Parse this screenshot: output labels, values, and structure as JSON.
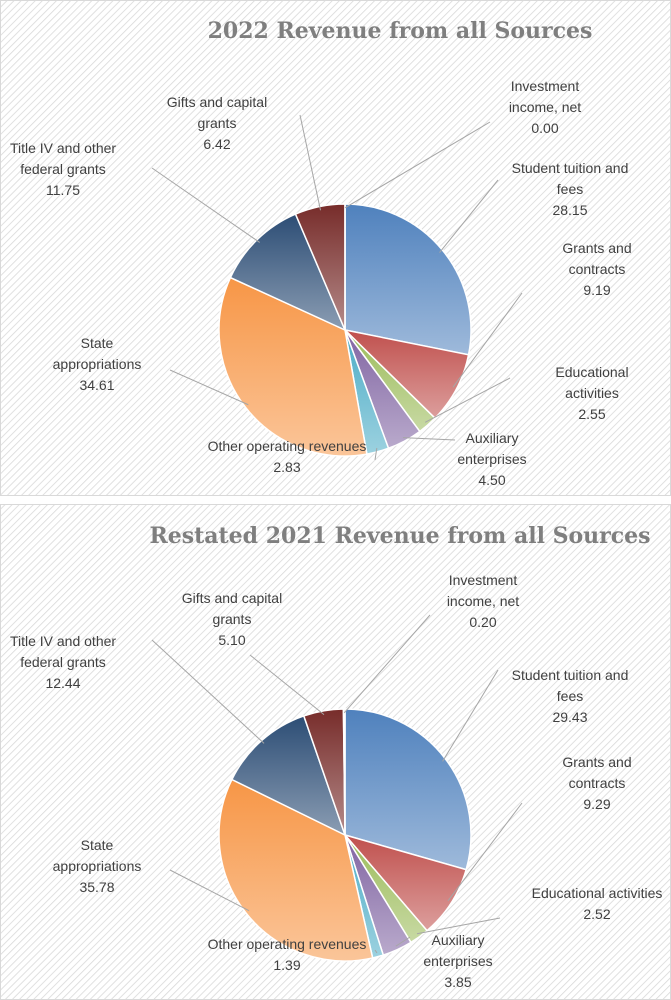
{
  "chart_data": [
    {
      "type": "pie",
      "title": "2022 Revenue from all Sources",
      "categories": [
        "Student tuition and fees",
        "Grants and contracts",
        "Educational activities",
        "Auxiliary enterprises",
        "Other operating revenues",
        "State appropriations",
        "Title IV  and other federal grants",
        "Gifts and capital grants",
        "Investment income, net"
      ],
      "values": [
        28.15,
        9.19,
        2.55,
        4.5,
        2.83,
        34.61,
        11.75,
        6.42,
        0
      ],
      "value_labels": [
        "28.15",
        "9.19",
        "2.55",
        "4.50",
        "2.83",
        "34.61",
        "11.75",
        "6.42",
        "0.00"
      ],
      "colors": [
        "#4f81bd",
        "#c0504d",
        "#9bbb59",
        "#8064a2",
        "#4bacc6",
        "#f79646",
        "#2c4d75",
        "#772c2a",
        "#5f7530"
      ]
    },
    {
      "type": "pie",
      "title": "Restated 2021 Revenue from all Sources",
      "categories": [
        "Student tuition and fees",
        "Grants and contracts",
        "Educational activities",
        "Auxiliary enterprises",
        "Other operating revenues",
        "State appropriations",
        "Title IV  and other federal grants",
        "Gifts and capital grants",
        "Investment income, net"
      ],
      "values": [
        29.43,
        9.29,
        2.52,
        3.85,
        1.39,
        35.78,
        12.44,
        5.1,
        0.2
      ],
      "value_labels": [
        "29.43",
        "9.29",
        "2.52",
        "3.85",
        "1.39",
        "35.78",
        "12.44",
        "5.10",
        "0.20"
      ],
      "colors": [
        "#4f81bd",
        "#c0504d",
        "#9bbb59",
        "#8064a2",
        "#4bacc6",
        "#f79646",
        "#2c4d75",
        "#772c2a",
        "#5f7530"
      ]
    }
  ]
}
